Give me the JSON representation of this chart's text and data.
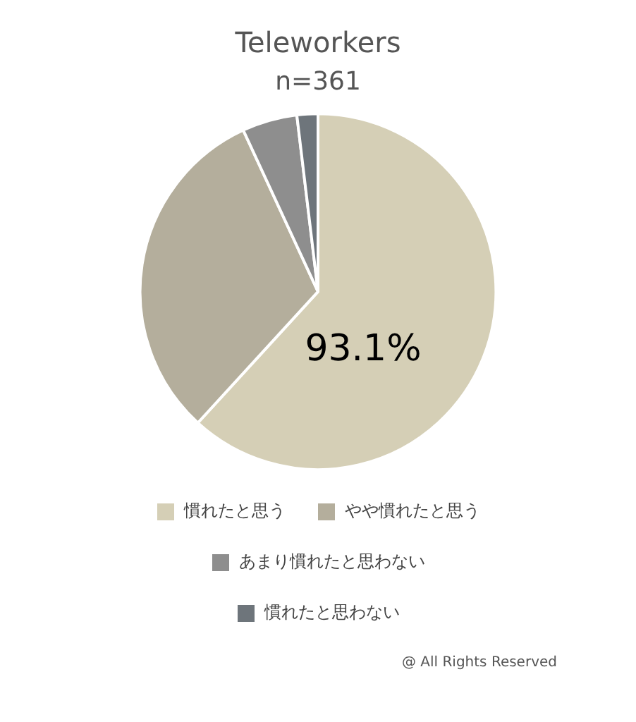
{
  "chart_data": {
    "type": "pie",
    "title": "Teleworkers",
    "subtitle": "n=361",
    "categories": [
      "慣れたと思う",
      "やや慣れたと思う",
      "あまり慣れたと思わない",
      "慣れたと思わない"
    ],
    "values": [
      61.8,
      31.3,
      5.0,
      1.9
    ],
    "colors": [
      "#d5cfb6",
      "#b4ae9c",
      "#8e8e8e",
      "#6e757b"
    ],
    "legend": "bottom",
    "annotations": [
      "93.1%",
      "@ All Rights Reserved"
    ]
  }
}
